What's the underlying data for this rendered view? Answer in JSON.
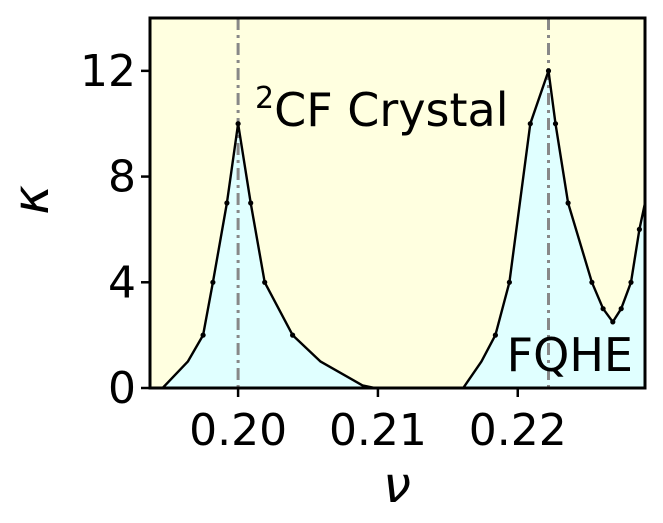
{
  "chart_data": {
    "type": "area",
    "xlabel": "ν",
    "ylabel": "κ",
    "xlim": [
      0.1937,
      0.2291
    ],
    "ylim": [
      0,
      14
    ],
    "x_ticks": [
      0.2,
      0.21,
      0.22
    ],
    "x_tick_labels": [
      "0.20",
      "0.21",
      "0.22"
    ],
    "y_ticks": [
      0,
      4,
      8,
      12
    ],
    "y_tick_labels": [
      "0",
      "4",
      "8",
      "12"
    ],
    "grid": false,
    "legend": "none",
    "reference_lines": [
      {
        "orientation": "vertical",
        "x": 0.2,
        "style": "dash-dot",
        "color": "#888888"
      },
      {
        "orientation": "vertical",
        "x": 0.2222,
        "style": "dash-dot",
        "color": "#888888"
      }
    ],
    "annotations": [
      {
        "superscript": "2",
        "text": "CF Crystal",
        "region": "background"
      },
      {
        "text": "FQHE",
        "region": "under curve"
      }
    ],
    "colors": {
      "background_region": "#ffffe0",
      "under_curve_fill": "#e0ffff",
      "line": "#000000",
      "markers": "#000000",
      "reference_line": "#888888"
    },
    "series": [
      {
        "x": [
          0.1946,
          0.1964,
          0.1975,
          0.1982,
          0.1992,
          0.2,
          0.2009,
          0.2019,
          0.2039,
          0.2059,
          0.2089,
          0.2098
        ],
        "y": [
          0,
          1,
          2,
          4,
          7,
          10,
          7,
          4,
          2,
          1,
          0.1,
          0
        ],
        "markers_at": [
          0.1975,
          0.1982,
          0.1992,
          0.2,
          0.2009,
          0.2019,
          0.2039
        ]
      },
      {
        "x": [
          0.2161,
          0.2174,
          0.2184,
          0.2194,
          0.2209,
          0.2222,
          0.2227,
          0.2236,
          0.2253,
          0.2261,
          0.2268,
          0.2274,
          0.2281,
          0.2287,
          0.2291
        ],
        "y": [
          0,
          1,
          2,
          4,
          10,
          12,
          10,
          7,
          4,
          3,
          2.5,
          3,
          4,
          6,
          7
        ],
        "markers_at": [
          0.2184,
          0.2194,
          0.2209,
          0.2222,
          0.2227,
          0.2236,
          0.2253,
          0.2261,
          0.2268,
          0.2274,
          0.2281,
          0.2287
        ]
      }
    ]
  }
}
